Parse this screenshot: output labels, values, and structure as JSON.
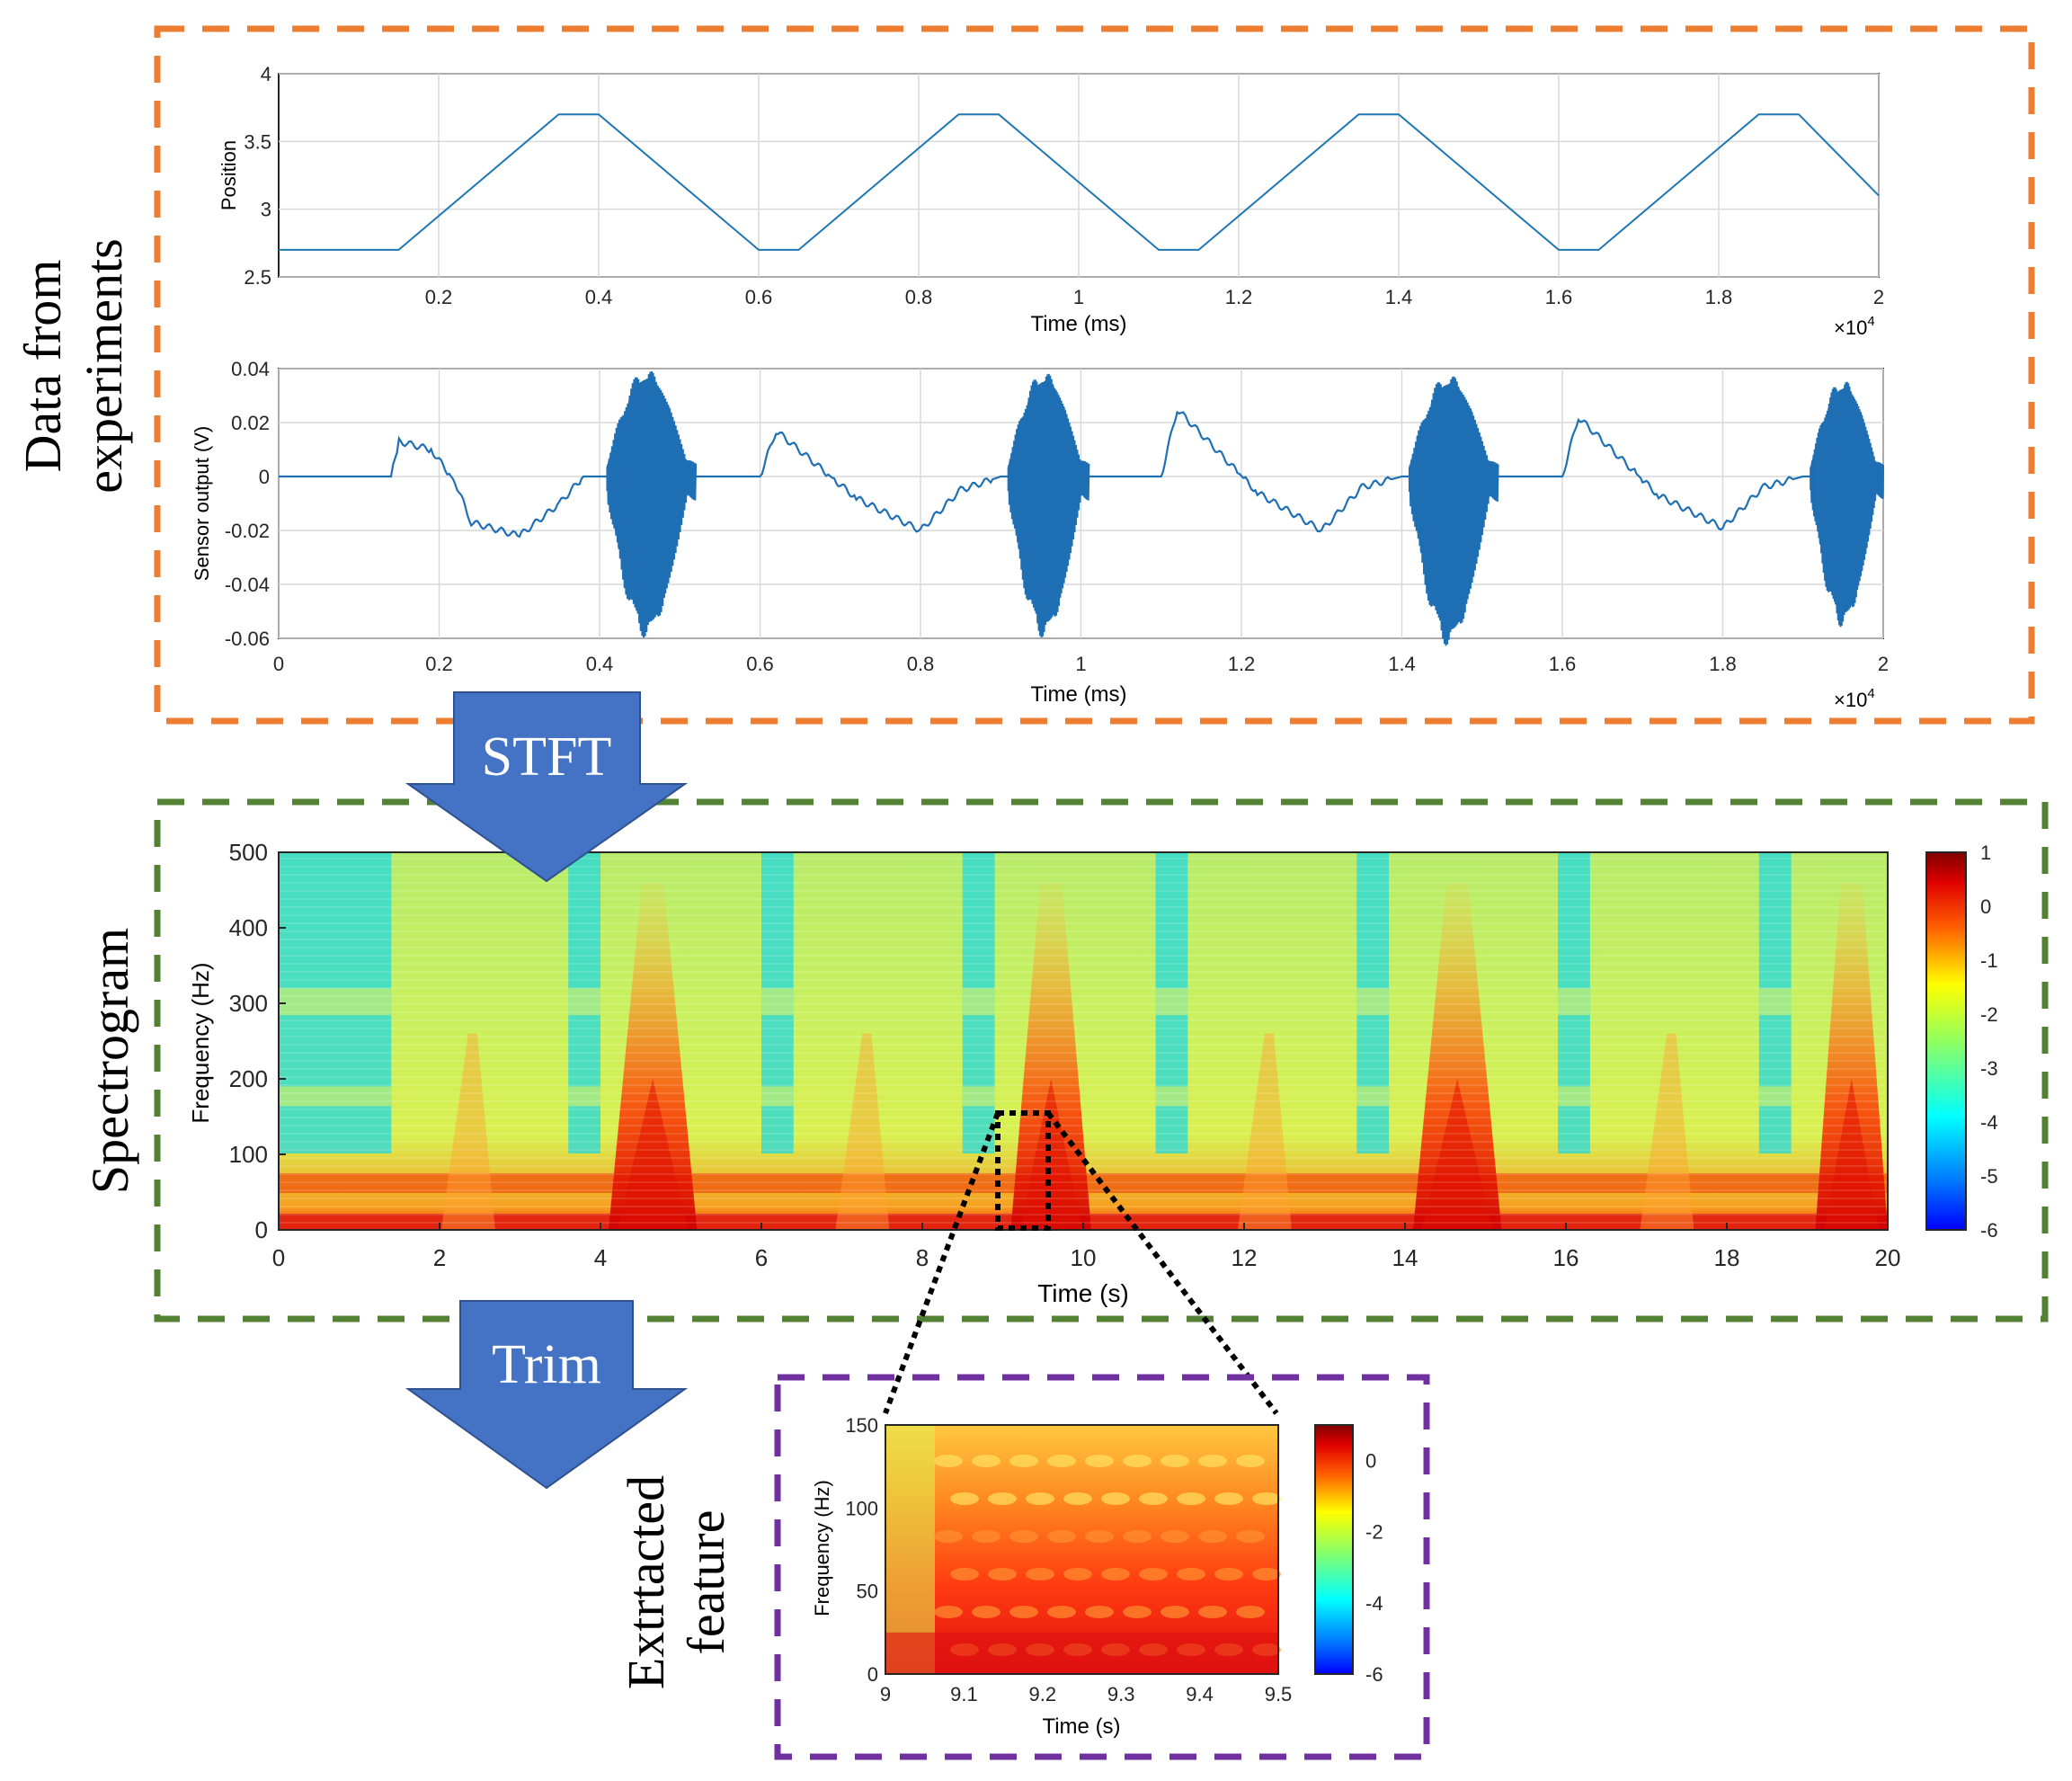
{
  "sections": {
    "experiments": {
      "label_line1": "Data from",
      "label_line2": "experiments",
      "border_color": "#ED7D31"
    },
    "spectrogram": {
      "label": "Spectrogram",
      "border_color": "#548235"
    },
    "feature": {
      "label_line1": "Extrtacted",
      "label_line2": "feature",
      "border_color": "#7030A0"
    }
  },
  "arrows": {
    "stft": {
      "label": "STFT",
      "color": "#4472C4"
    },
    "trim": {
      "label": "Trim",
      "color": "#4472C4"
    }
  },
  "position_plot": {
    "ylabel": "Position",
    "xlabel": "Time (ms)",
    "x_multiplier": "×10",
    "x_multiplier_exp": "4",
    "line_color": "#1f77b4"
  },
  "sensor_plot": {
    "ylabel": "Sensor output (V)",
    "xlabel": "Time (ms)",
    "x_multiplier": "×10",
    "x_multiplier_exp": "4",
    "line_color": "#1f6fb4"
  },
  "spectrogram_plot": {
    "ylabel": "Frequency (Hz)",
    "xlabel": "Time (s)"
  },
  "feature_plot": {
    "ylabel": "Frequency (Hz)",
    "xlabel": "Time (s)"
  },
  "chart_data": [
    {
      "type": "line",
      "name": "position",
      "title": "",
      "xlabel": "Time (ms)",
      "ylabel": "Position",
      "x_scale_note": "×10^4",
      "xlim": [
        0,
        2
      ],
      "ylim": [
        2.5,
        4
      ],
      "grid": true,
      "x_ticks": [
        "0.2",
        "0.4",
        "0.6",
        "0.8",
        "1",
        "1.2",
        "1.4",
        "1.6",
        "1.8",
        "2"
      ],
      "y_ticks": [
        "2.5",
        "3",
        "3.5",
        "4"
      ],
      "x": [
        0,
        0.15,
        0.35,
        0.4,
        0.6,
        0.65,
        0.85,
        0.9,
        1.1,
        1.15,
        1.35,
        1.4,
        1.6,
        1.65,
        1.85,
        1.9,
        2.0
      ],
      "y": [
        2.7,
        2.7,
        3.7,
        3.7,
        2.7,
        2.7,
        3.7,
        3.7,
        2.7,
        2.7,
        3.7,
        3.7,
        2.7,
        2.7,
        3.7,
        3.7,
        3.1
      ]
    },
    {
      "type": "line",
      "name": "sensor_output",
      "title": "",
      "xlabel": "Time (ms)",
      "ylabel": "Sensor output (V)",
      "x_scale_note": "×10^4",
      "xlim": [
        0,
        2
      ],
      "ylim": [
        -0.06,
        0.04
      ],
      "grid": true,
      "x_ticks": [
        "0",
        "0.2",
        "0.4",
        "0.6",
        "0.8",
        "1",
        "1.2",
        "1.4",
        "1.6",
        "1.8",
        "2"
      ],
      "y_ticks": [
        "0.04",
        "0.02",
        "0",
        "-0.02",
        "-0.04",
        "-0.06"
      ],
      "x": [
        0,
        0.14,
        0.15,
        0.19,
        0.22,
        0.24,
        0.3,
        0.35,
        0.38,
        0.4,
        0.6,
        0.62,
        0.72,
        0.8,
        0.85,
        0.9,
        1.1,
        1.12,
        1.22,
        1.3,
        1.35,
        1.4,
        1.6,
        1.62,
        1.72,
        1.8,
        1.85,
        1.9,
        2.0
      ],
      "y": [
        0,
        0,
        0.013,
        0.01,
        -0.002,
        -0.017,
        -0.022,
        -0.01,
        0,
        0,
        0,
        0.017,
        -0.008,
        -0.02,
        -0.005,
        0,
        0,
        0.025,
        -0.006,
        -0.02,
        -0.004,
        0,
        0,
        0.022,
        -0.007,
        -0.019,
        -0.004,
        0,
        0
      ],
      "bursts": [
        {
          "x_start": 0.41,
          "x_end": 0.52,
          "max": 0.04,
          "min": -0.06
        },
        {
          "x_start": 0.91,
          "x_end": 1.01,
          "max": 0.039,
          "min": -0.06
        },
        {
          "x_start": 1.41,
          "x_end": 1.52,
          "max": 0.038,
          "min": -0.063
        },
        {
          "x_start": 1.91,
          "x_end": 2.0,
          "max": 0.036,
          "min": -0.056
        }
      ]
    },
    {
      "type": "heatmap",
      "name": "spectrogram",
      "title": "",
      "xlabel": "Time (s)",
      "ylabel": "Frequency (Hz)",
      "xlim": [
        0,
        20
      ],
      "ylim": [
        0,
        500
      ],
      "x_ticks": [
        "0",
        "2",
        "4",
        "6",
        "8",
        "10",
        "12",
        "14",
        "16",
        "18",
        "20"
      ],
      "y_ticks": [
        "0",
        "100",
        "200",
        "300",
        "400",
        "500"
      ],
      "colorbar_ticks": [
        "1",
        "0",
        "-1",
        "-2",
        "-3",
        "-4",
        "-5",
        "-6"
      ],
      "colorbar_range": [
        -6,
        1
      ],
      "quiet_bands_s": [
        [
          0,
          1.4
        ],
        [
          3.6,
          4.0
        ],
        [
          6.0,
          6.4
        ],
        [
          8.5,
          8.9
        ],
        [
          10.9,
          11.3
        ],
        [
          13.4,
          13.8
        ],
        [
          15.9,
          16.3
        ],
        [
          18.4,
          18.8
        ]
      ],
      "energy_bursts_s": [
        [
          4.1,
          5.2
        ],
        [
          9.1,
          10.1
        ],
        [
          14.1,
          15.2
        ],
        [
          19.1,
          20.0
        ]
      ],
      "harmonic_band_hz": [
        50,
        80
      ],
      "zoom_region": {
        "t_start": 9.0,
        "t_end": 9.5,
        "f_start": 0,
        "f_end": 150
      }
    },
    {
      "type": "heatmap",
      "name": "extracted_feature",
      "title": "",
      "xlabel": "Time (s)",
      "ylabel": "Frequency (Hz)",
      "xlim": [
        9,
        9.5
      ],
      "ylim": [
        0,
        150
      ],
      "x_ticks": [
        "9",
        "9.1",
        "9.2",
        "9.3",
        "9.4",
        "9.5"
      ],
      "y_ticks": [
        "0",
        "50",
        "100",
        "150"
      ],
      "colorbar_ticks": [
        "0",
        "-2",
        "-4",
        "-6"
      ],
      "colorbar_range": [
        -6,
        1
      ]
    }
  ]
}
